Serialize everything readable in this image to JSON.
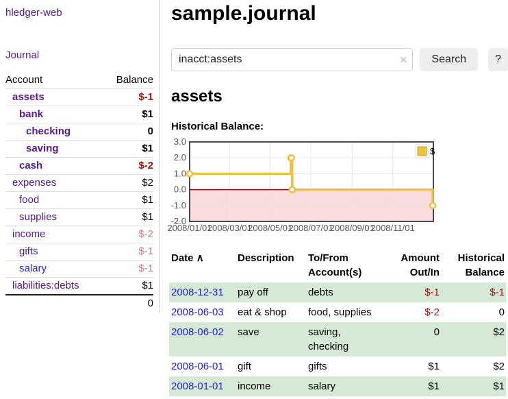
{
  "app": {
    "title": "hledger-web"
  },
  "sidebar": {
    "journal_link": "Journal",
    "accounts": {
      "header_account": "Account",
      "header_balance": "Balance",
      "rows": [
        {
          "name": "assets",
          "balance": "$-1"
        },
        {
          "name": "bank",
          "balance": "$1"
        },
        {
          "name": "checking",
          "balance": "0"
        },
        {
          "name": "saving",
          "balance": "$1"
        },
        {
          "name": "cash",
          "balance": "$-2"
        },
        {
          "name": "expenses",
          "balance": "$2"
        },
        {
          "name": "food",
          "balance": "$1"
        },
        {
          "name": "supplies",
          "balance": "$1"
        },
        {
          "name": "income",
          "balance": "$-2"
        },
        {
          "name": "gifts",
          "balance": "$-1"
        },
        {
          "name": "salary",
          "balance": "$-1"
        },
        {
          "name": "liabilities:debts",
          "balance": "$1"
        }
      ],
      "total": "0"
    }
  },
  "main": {
    "title": "sample.journal",
    "search": {
      "value": "inacct:assets",
      "clear_icon": "×",
      "search_button": "Search",
      "help_button": "?"
    },
    "account_heading": "assets",
    "chart_title": "Historical Balance:"
  },
  "chart_data": {
    "type": "line",
    "step": true,
    "title": "Historical Balance:",
    "series": [
      {
        "name": "$",
        "color": "#edc240",
        "points": [
          [
            "2008-01-01",
            1
          ],
          [
            "2008-06-01",
            2
          ],
          [
            "2008-06-02",
            2
          ],
          [
            "2008-06-03",
            0
          ],
          [
            "2008-12-31",
            -1
          ]
        ]
      }
    ],
    "x_range": [
      "2008-01-01",
      "2009-01-01"
    ],
    "ylim": [
      -2,
      3
    ],
    "y_ticks": [
      3,
      2,
      1,
      0,
      -1,
      -2
    ],
    "x_ticks": [
      {
        "date": "2008-01-01",
        "label": "2008/01/01"
      },
      {
        "date": "2008-03-01",
        "label": "2008/03/01"
      },
      {
        "date": "2008-05-01",
        "label": "2008/05/01"
      },
      {
        "date": "2008-07-01",
        "label": "2008/07/01"
      },
      {
        "date": "2008-09-01",
        "label": "2008/09/01"
      },
      {
        "date": "2008-11-01",
        "label": "2008/11/01"
      }
    ],
    "legend_position": "top-right",
    "grid_on": true,
    "grid_color": "#e8e8e8",
    "negative_fill": "#fbdcdc",
    "zero_line_color": "#8f0d0d",
    "border_color": "#4a4a4a",
    "tick_color": "#555555"
  },
  "register": {
    "sort_arrow": "∧",
    "columns": [
      {
        "line1": "Date",
        "line2": ""
      },
      {
        "line1": "Description",
        "line2": ""
      },
      {
        "line1": "To/From",
        "line2": "Account(s)"
      },
      {
        "line1": "Amount",
        "line2": "Out/In"
      },
      {
        "line1": "Historical",
        "line2": "Balance"
      }
    ],
    "rows": [
      {
        "date": "2008-12-31",
        "description": "pay off",
        "accounts": "debts",
        "amount": "$-1",
        "balance": "$-1"
      },
      {
        "date": "2008-06-03",
        "description": "eat & shop",
        "accounts": "food, supplies",
        "amount": "$-2",
        "balance": "0"
      },
      {
        "date": "2008-06-02",
        "description": "save",
        "accounts": "saving, checking",
        "amount": "0",
        "balance": "$2"
      },
      {
        "date": "2008-06-01",
        "description": "gift",
        "accounts": "gifts",
        "amount": "$1",
        "balance": "$2"
      },
      {
        "date": "2008-01-01",
        "description": "income",
        "accounts": "salary",
        "amount": "$1",
        "balance": "$1"
      }
    ]
  },
  "colors": {
    "link_visited_purple": "#551a8b",
    "link_unvisited_blue": "#2222dd",
    "negative_amount": "#941710",
    "negative_amount_muted": "#c28383",
    "register_row_green": "#d6e8d6",
    "chart_series_yellow": "#edc240",
    "chart_negative_fill": "#fbdcdc",
    "chart_zero_line": "#8f0d0d"
  }
}
